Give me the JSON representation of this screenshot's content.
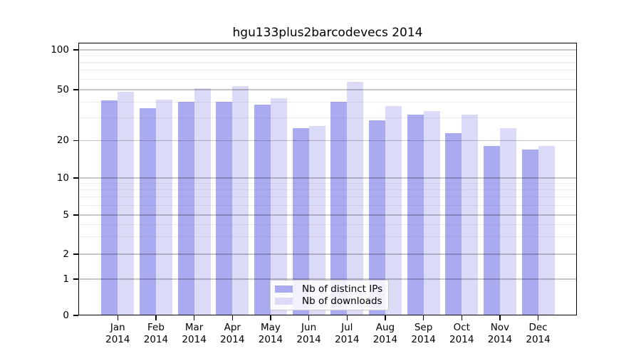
{
  "title": "hgu133plus2barcodevecs 2014",
  "chart_data": {
    "type": "bar",
    "title": "hgu133plus2barcodevecs 2014",
    "categories": [
      "Jan 2014",
      "Feb 2014",
      "Mar 2014",
      "Apr 2014",
      "May 2014",
      "Jun 2014",
      "Jul 2014",
      "Aug 2014",
      "Sep 2014",
      "Oct 2014",
      "Nov 2014",
      "Dec 2014"
    ],
    "x_tick_months": [
      "Jan",
      "Feb",
      "Mar",
      "Apr",
      "May",
      "Jun",
      "Jul",
      "Aug",
      "Sep",
      "Oct",
      "Nov",
      "Dec"
    ],
    "x_tick_year": "2014",
    "series": [
      {
        "name": "Nb of distinct IPs",
        "color": "#aaaaf0",
        "values": [
          41,
          36,
          40,
          40,
          38,
          25,
          40,
          29,
          32,
          23,
          18,
          17
        ]
      },
      {
        "name": "Nb of downloads",
        "color": "#dbdbf8",
        "values": [
          48,
          42,
          51,
          53,
          43,
          26,
          57,
          37,
          34,
          32,
          25,
          18
        ]
      }
    ],
    "y_ticks": [
      0,
      1,
      2,
      5,
      10,
      20,
      50,
      100
    ],
    "y_minor_gridlines": [
      3,
      4,
      6,
      7,
      8,
      9,
      30,
      40,
      60,
      70,
      80,
      90
    ],
    "y_axis_scale": "log-like custom",
    "ylim": [
      0,
      113
    ],
    "xlabel": "",
    "ylabel": "",
    "grid": true,
    "legend_position": "lower-center",
    "frame": "full-box",
    "background_color": "#ffffff"
  },
  "legend": {
    "items": [
      {
        "label": "Nb of distinct IPs",
        "color": "#aaaaf0"
      },
      {
        "label": "Nb of downloads",
        "color": "#dbdbf8"
      }
    ]
  }
}
